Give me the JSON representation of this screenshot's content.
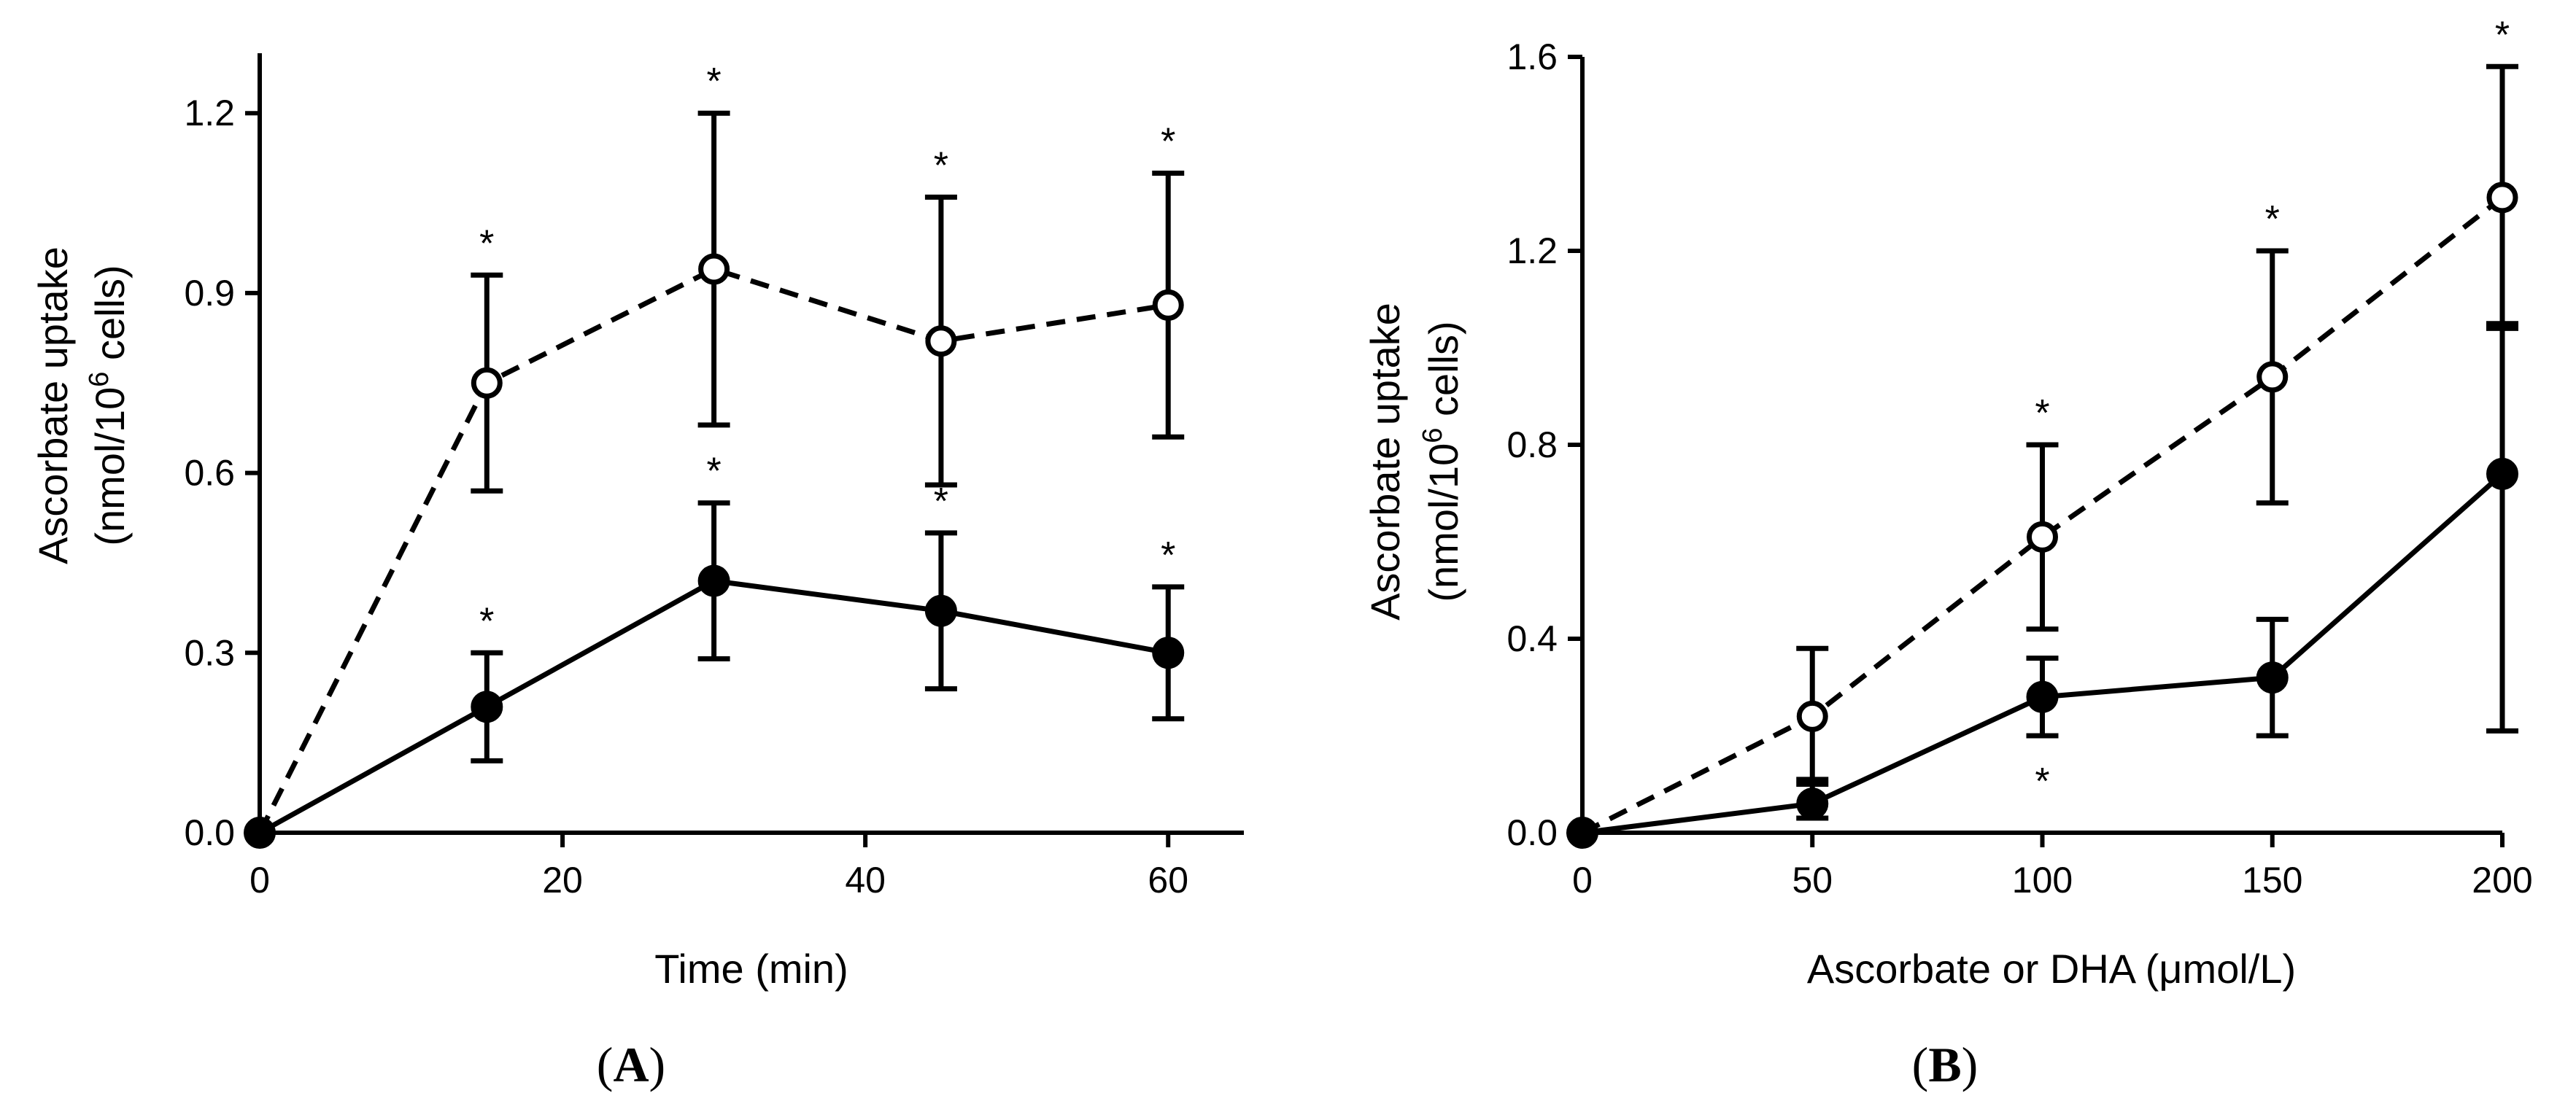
{
  "chart_data": [
    {
      "type": "line",
      "panel": "A",
      "xlabel": "Time (min)",
      "ylabel_line1": "Ascorbate uptake",
      "ylabel_line2_pre": "(nmol/10",
      "ylabel_line2_sup": "6",
      "ylabel_line2_post": " cells)",
      "xlim": [
        0,
        65
      ],
      "ylim": [
        0,
        1.3
      ],
      "xticks": [
        0,
        20,
        40,
        60
      ],
      "yticks": [
        0.0,
        0.3,
        0.6,
        0.9,
        1.2
      ],
      "xtick_labels": [
        "0",
        "20",
        "40",
        "60"
      ],
      "ytick_labels": [
        "0.0",
        "0.3",
        "0.6",
        "0.9",
        "1.2"
      ],
      "series": [
        {
          "name": "open",
          "style": "dashed",
          "marker": "open",
          "x": [
            0,
            15,
            30,
            45,
            60
          ],
          "y": [
            0.0,
            0.75,
            0.94,
            0.82,
            0.88
          ],
          "err": [
            0,
            0.18,
            0.26,
            0.24,
            0.22
          ],
          "sig": [
            false,
            true,
            true,
            true,
            true
          ]
        },
        {
          "name": "filled",
          "style": "solid",
          "marker": "filled",
          "x": [
            0,
            15,
            30,
            45,
            60
          ],
          "y": [
            0.0,
            0.21,
            0.42,
            0.37,
            0.3
          ],
          "err": [
            0,
            0.09,
            0.13,
            0.13,
            0.11
          ],
          "sig": [
            false,
            true,
            true,
            true,
            true
          ]
        }
      ],
      "star": "*"
    },
    {
      "type": "line",
      "panel": "B",
      "xlabel": "Ascorbate or DHA (μmol/L)",
      "ylabel_line1": "Ascorbate uptake",
      "ylabel_line2_pre": "(nmol/10",
      "ylabel_line2_sup": "6",
      "ylabel_line2_post": " cells)",
      "xlim": [
        0,
        200
      ],
      "ylim": [
        0,
        1.6
      ],
      "xticks": [
        0,
        50,
        100,
        150,
        200
      ],
      "yticks": [
        0.0,
        0.4,
        0.8,
        1.2,
        1.6
      ],
      "xtick_labels": [
        "0",
        "50",
        "100",
        "150",
        "200"
      ],
      "ytick_labels": [
        "0.0",
        "0.4",
        "0.8",
        "1.2",
        "1.6"
      ],
      "series": [
        {
          "name": "open",
          "style": "dashed",
          "marker": "open",
          "x": [
            0,
            50,
            100,
            150,
            200
          ],
          "y": [
            0.0,
            0.24,
            0.61,
            0.94,
            1.31
          ],
          "err": [
            0,
            0.14,
            0.19,
            0.26,
            0.27
          ],
          "sig": [
            false,
            false,
            true,
            true,
            true
          ],
          "sig_pos": [
            "above",
            "above",
            "above",
            "above",
            "above"
          ]
        },
        {
          "name": "filled",
          "style": "solid",
          "marker": "filled",
          "x": [
            0,
            50,
            100,
            150,
            200
          ],
          "y": [
            0.0,
            0.06,
            0.28,
            0.32,
            0.74
          ],
          "err": [
            0,
            0.05,
            0.08,
            0.12,
            0.31
          ],
          "err_low": [
            0,
            0.03,
            0.08,
            0.12,
            0.53
          ],
          "sig": [
            false,
            false,
            true,
            false,
            false
          ],
          "sig_pos": [
            "below",
            "below",
            "below",
            "below",
            "below"
          ]
        }
      ],
      "star": "*"
    }
  ],
  "panel_labels": {
    "a_open": "(",
    "a_letter": "A",
    "a_close": ")",
    "b_open": "(",
    "b_letter": "B",
    "b_close": ")"
  }
}
